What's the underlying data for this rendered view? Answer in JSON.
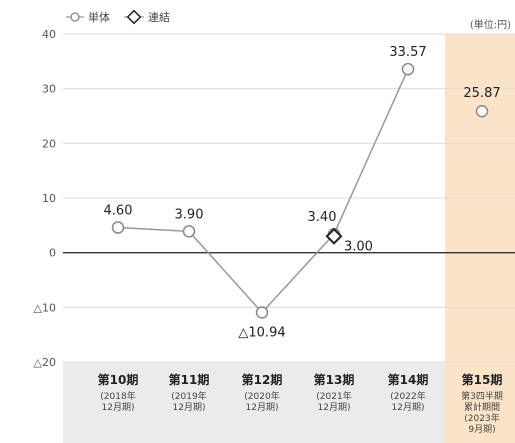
{
  "chart_data": {
    "type": "line",
    "unit_label": "(単位:円)",
    "legend": [
      {
        "name": "単体",
        "marker": "circle"
      },
      {
        "name": "連結",
        "marker": "diamond"
      }
    ],
    "ylim": [
      -20,
      40
    ],
    "yticks": [
      {
        "value": 40,
        "label": "40"
      },
      {
        "value": 30,
        "label": "30"
      },
      {
        "value": 20,
        "label": "20"
      },
      {
        "value": 10,
        "label": "10"
      },
      {
        "value": 0,
        "label": "0"
      },
      {
        "value": -10,
        "label": "△10"
      },
      {
        "value": -20,
        "label": "△20"
      }
    ],
    "categories": [
      {
        "main": "第10期",
        "sub": [
          "(2018年",
          "12月期)"
        ]
      },
      {
        "main": "第11期",
        "sub": [
          "(2019年",
          "12月期)"
        ]
      },
      {
        "main": "第12期",
        "sub": [
          "(2020年",
          "12月期)"
        ]
      },
      {
        "main": "第13期",
        "sub": [
          "(2021年",
          "12月期)"
        ]
      },
      {
        "main": "第14期",
        "sub": [
          "(2022年",
          "12月期)"
        ]
      },
      {
        "main": "第15期",
        "sub": [
          "第3四半期",
          "累計期間",
          "(2023年",
          "9月期)"
        ]
      }
    ],
    "highlight_category": 5,
    "highlight_color": "#fbe3c8",
    "series": [
      {
        "name": "単体",
        "marker": "circle",
        "connected_points": 5,
        "values": [
          4.6,
          3.9,
          -10.94,
          3.4,
          33.57,
          25.87
        ],
        "labels": [
          "4.60",
          "3.90",
          "△10.94",
          "3.40",
          "33.57",
          "25.87"
        ]
      },
      {
        "name": "連結",
        "marker": "diamond",
        "points": [
          {
            "index": 3,
            "value": 3.0,
            "label": "3.00"
          }
        ]
      }
    ],
    "colors": {
      "line": "#999999",
      "marker_edge": "#888888",
      "diamond_edge": "#222222",
      "category_band": "#ebebeb"
    }
  }
}
